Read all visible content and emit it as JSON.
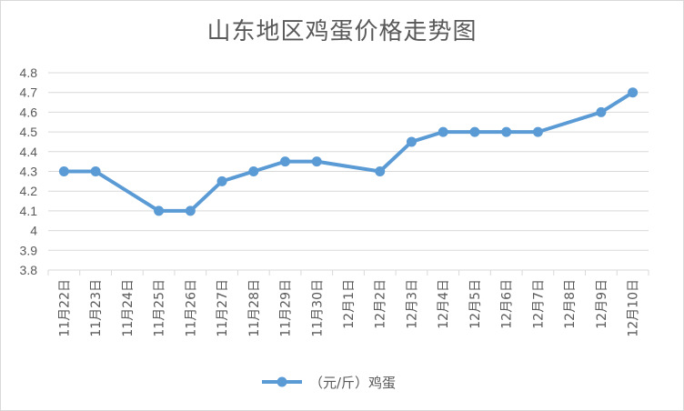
{
  "chart_data": {
    "type": "line",
    "title": "山东地区鸡蛋价格走势图",
    "categories": [
      "11月22日",
      "11月23日",
      "11月24日",
      "11月25日",
      "11月26日",
      "11月27日",
      "11月28日",
      "11月29日",
      "11月30日",
      "12月1日",
      "12月2日",
      "12月3日",
      "12月4日",
      "12月5日",
      "12月6日",
      "12月7日",
      "12月8日",
      "12月9日",
      "12月10日"
    ],
    "series": [
      {
        "name": "（元/斤）鸡蛋",
        "values": [
          4.3,
          4.3,
          null,
          4.1,
          4.1,
          4.25,
          4.3,
          4.35,
          4.35,
          null,
          4.3,
          4.45,
          4.5,
          4.5,
          4.5,
          4.5,
          null,
          4.6,
          4.7
        ]
      }
    ],
    "yticks": [
      "3.8",
      "3.9",
      "4",
      "4.1",
      "4.2",
      "4.3",
      "4.4",
      "4.5",
      "4.6",
      "4.7",
      "4.8"
    ],
    "ylim": [
      3.8,
      4.8
    ],
    "grid": true,
    "legend_position": "bottom",
    "color": "#5b9bd5"
  }
}
